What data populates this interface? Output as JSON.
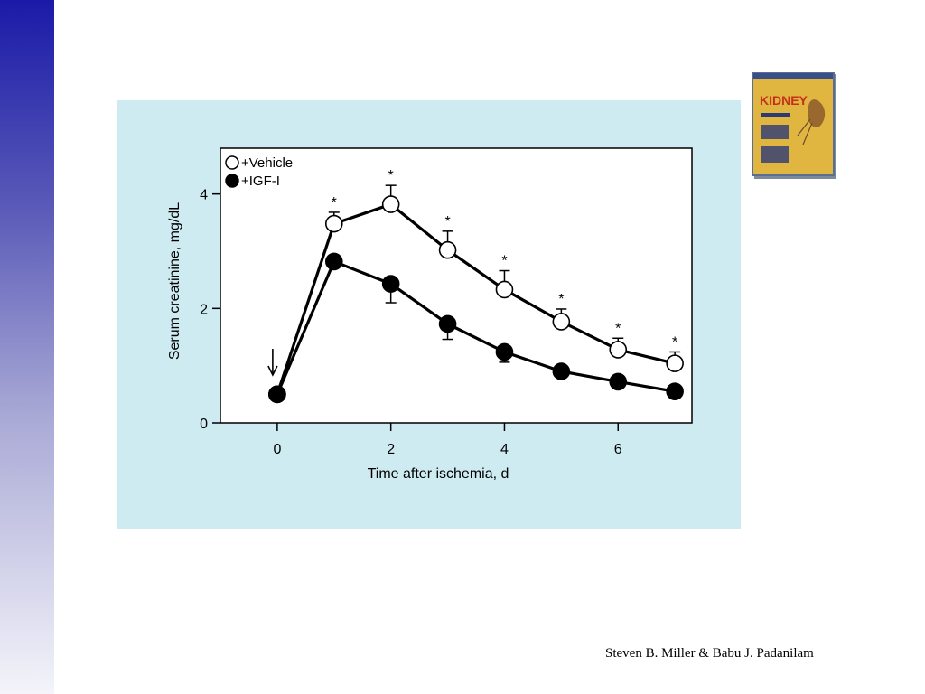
{
  "chart_data": {
    "type": "line",
    "xlabel": "Time after ischemia, d",
    "ylabel": "Serum creatinine, mg/dL",
    "xlim": [
      -1,
      7.3
    ],
    "ylim": [
      0,
      4.8
    ],
    "x_ticks": [
      "0",
      "2",
      "4",
      "6"
    ],
    "y_ticks": [
      "0",
      "2",
      "4"
    ],
    "grid": false,
    "legend_position": "top-left",
    "series": [
      {
        "name": "+Vehicle",
        "marker": "open-circle",
        "x": [
          0,
          1,
          2,
          3,
          4,
          5,
          6,
          7
        ],
        "y": [
          0.5,
          3.48,
          3.82,
          3.02,
          2.33,
          1.77,
          1.28,
          1.04
        ],
        "error_upper": [
          null,
          0.2,
          0.33,
          0.33,
          0.33,
          0.22,
          0.2,
          0.2
        ],
        "significance": [
          "",
          "*",
          "*",
          "*",
          "*",
          "*",
          "*",
          "*"
        ]
      },
      {
        "name": "+IGF-I",
        "marker": "filled-circle",
        "x": [
          0,
          1,
          2,
          3,
          4,
          5,
          6,
          7
        ],
        "y": [
          0.5,
          2.82,
          2.43,
          1.73,
          1.24,
          0.9,
          0.72,
          0.55
        ],
        "error_lower": [
          null,
          null,
          0.33,
          0.27,
          0.18,
          null,
          null,
          null
        ]
      }
    ],
    "annotations": [
      {
        "type": "arrow",
        "x": 0,
        "direction": "down",
        "meaning": "ischemia onset"
      }
    ]
  },
  "book_cover": {
    "title": "KIDNEY"
  },
  "footer": {
    "credit": "Steven B. Miller & Babu J. Padanilam"
  }
}
